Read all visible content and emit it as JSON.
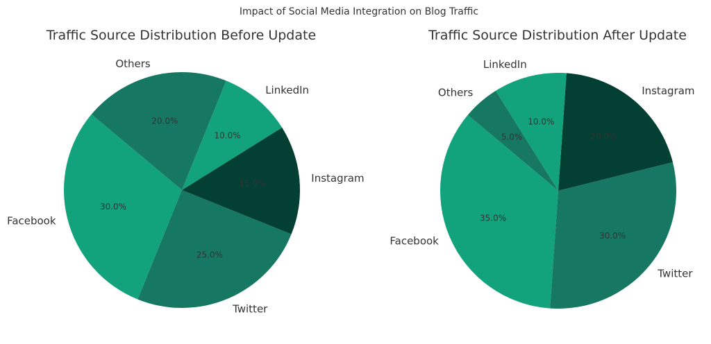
{
  "figure": {
    "suptitle": "Impact of Social Media Integration on Blog Traffic"
  },
  "colors": {
    "Facebook": "#12a27c",
    "Twitter": "#167762",
    "Instagram": "#033f33",
    "LinkedIn": "#12a27c",
    "Others": "#167762"
  },
  "chart_data": [
    {
      "type": "pie",
      "title": "Traffic Source Distribution Before Update",
      "categories": [
        "Facebook",
        "Twitter",
        "Instagram",
        "LinkedIn",
        "Others"
      ],
      "values": [
        30.0,
        25.0,
        15.0,
        10.0,
        20.0
      ],
      "value_labels": [
        "30.0%",
        "25.0%",
        "15.0%",
        "10.0%",
        "20.0%"
      ],
      "start_angle_deg": 140,
      "direction": "counterclockwise"
    },
    {
      "type": "pie",
      "title": "Traffic Source Distribution After Update",
      "categories": [
        "Facebook",
        "Twitter",
        "Instagram",
        "LinkedIn",
        "Others"
      ],
      "values": [
        35.0,
        30.0,
        20.0,
        10.0,
        5.0
      ],
      "value_labels": [
        "35.0%",
        "30.0%",
        "20.0%",
        "10.0%",
        "5.0%"
      ],
      "start_angle_deg": 140,
      "direction": "counterclockwise"
    }
  ]
}
